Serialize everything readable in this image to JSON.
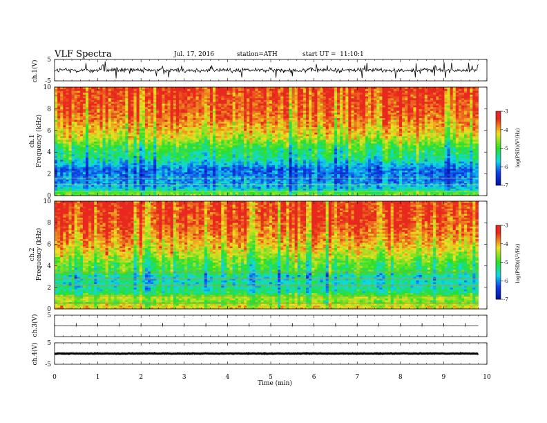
{
  "header": {
    "title": "VLF Spectra",
    "date": "Jul. 17, 2016",
    "station": "station=ATH",
    "start": "start UT =  11:10:1"
  },
  "xaxis": {
    "label": "Time (min)"
  },
  "panels": {
    "ch1_wave": {
      "ylabel": "ch.1(V)"
    },
    "ch1_spec": {
      "ylabel_top": "ch.1",
      "ylabel_bottom": "Frequency (kHz)"
    },
    "ch2_spec": {
      "ylabel_top": "ch.2",
      "ylabel_bottom": "Frequency (kHz)"
    },
    "ch3_wave": {
      "ylabel": "ch.3(V)"
    },
    "ch4_wave": {
      "ylabel": "ch.4(V)"
    }
  },
  "colorbar": {
    "label": "log(PSD)(V²/Hz)"
  },
  "colors": {
    "red": "#e8281e",
    "yellow": "#f0e020",
    "green": "#28e028",
    "cyan": "#10d8e8",
    "blue": "#1040e8",
    "navy": "#0010a0"
  },
  "chart_data": [
    {
      "type": "line",
      "name": "ch.1 waveform",
      "ylabel": "ch.1(V)",
      "xlim": [
        0,
        10
      ],
      "ylim": [
        -5,
        5
      ],
      "yticks": [
        {
          "value": 5,
          "label": "5"
        },
        {
          "value": -5,
          "label": "-5"
        }
      ],
      "x_data_end": 9.8,
      "baseline": 0,
      "amplitude_typical": 1.5,
      "amplitude_spikes": 4.5
    },
    {
      "type": "heatmap",
      "name": "ch.1 spectrogram",
      "ylabel": "Frequency (kHz)",
      "xlim": [
        0,
        10
      ],
      "ylim": [
        0,
        10
      ],
      "yticks": [
        {
          "value": 0,
          "label": "0"
        },
        {
          "value": 2,
          "label": "2"
        },
        {
          "value": 4,
          "label": "4"
        },
        {
          "value": 6,
          "label": "6"
        },
        {
          "value": 8,
          "label": "8"
        },
        {
          "value": 10,
          "label": "10"
        }
      ],
      "x_data_end": 9.8,
      "zlim": [
        -7,
        -3
      ],
      "colorbar_ticks": [
        {
          "value": -3,
          "label": "-3"
        },
        {
          "value": -4,
          "label": "-4"
        },
        {
          "value": -5,
          "label": "-5"
        },
        {
          "value": -6,
          "label": "-6"
        },
        {
          "value": -7,
          "label": "-7"
        }
      ],
      "mean_log_psd_by_freq": [
        [
          0.3,
          -4.8
        ],
        [
          0.6,
          -5.6
        ],
        [
          1.0,
          -5.9
        ],
        [
          1.5,
          -6.0
        ],
        [
          2.0,
          -6.1
        ],
        [
          2.5,
          -6.1
        ],
        [
          3.0,
          -5.7
        ],
        [
          3.5,
          -5.3
        ],
        [
          4.0,
          -5.2
        ],
        [
          4.5,
          -5.0
        ],
        [
          5.0,
          -4.6
        ],
        [
          5.5,
          -4.3
        ],
        [
          6.0,
          -4.1
        ],
        [
          7.0,
          -3.8
        ],
        [
          8.0,
          -3.6
        ],
        [
          9.0,
          -3.5
        ],
        [
          10.0,
          -3.4
        ]
      ]
    },
    {
      "type": "heatmap",
      "name": "ch.2 spectrogram",
      "ylabel": "Frequency (kHz)",
      "xlim": [
        0,
        10
      ],
      "ylim": [
        0,
        10
      ],
      "yticks": [
        {
          "value": 0,
          "label": "0"
        },
        {
          "value": 2,
          "label": "2"
        },
        {
          "value": 4,
          "label": "4"
        },
        {
          "value": 6,
          "label": "6"
        },
        {
          "value": 8,
          "label": "8"
        },
        {
          "value": 10,
          "label": "10"
        }
      ],
      "x_data_end": 9.8,
      "zlim": [
        -7,
        -3
      ],
      "colorbar_ticks": [
        {
          "value": -3,
          "label": "-3"
        },
        {
          "value": -4,
          "label": "-4"
        },
        {
          "value": -5,
          "label": "-5"
        },
        {
          "value": -6,
          "label": "-6"
        },
        {
          "value": -7,
          "label": "-7"
        }
      ],
      "mean_log_psd_by_freq": [
        [
          0.3,
          -4.2
        ],
        [
          0.6,
          -4.8
        ],
        [
          1.0,
          -4.4
        ],
        [
          1.5,
          -5.2
        ],
        [
          2.0,
          -5.4
        ],
        [
          2.5,
          -5.5
        ],
        [
          3.0,
          -5.5
        ],
        [
          3.5,
          -5.0
        ],
        [
          4.0,
          -4.9
        ],
        [
          4.5,
          -4.7
        ],
        [
          5.0,
          -4.4
        ],
        [
          5.5,
          -4.2
        ],
        [
          6.0,
          -4.0
        ],
        [
          7.0,
          -3.7
        ],
        [
          8.0,
          -3.5
        ],
        [
          9.0,
          -3.4
        ],
        [
          10.0,
          -3.4
        ]
      ]
    },
    {
      "type": "line",
      "name": "ch.3 waveform",
      "ylabel": "ch.3(V)",
      "xlim": [
        0,
        10
      ],
      "ylim": [
        -5,
        5
      ],
      "yticks": [
        {
          "value": 5,
          "label": "5"
        }
      ],
      "x_data_end": 9.8,
      "baseline": 0,
      "amplitude_typical": 0.05
    },
    {
      "type": "line",
      "name": "ch.4 waveform",
      "ylabel": "ch.4(V)",
      "xlim": [
        0,
        10
      ],
      "ylim": [
        -5,
        5
      ],
      "yticks": [
        {
          "value": 5,
          "label": "5"
        },
        {
          "value": -5,
          "label": "-5"
        }
      ],
      "x_data_end": 9.8,
      "baseline": 0,
      "amplitude_typical": 0.2
    }
  ],
  "xticks": [
    {
      "value": 0,
      "label": "0"
    },
    {
      "value": 1,
      "label": "1"
    },
    {
      "value": 2,
      "label": "2"
    },
    {
      "value": 3,
      "label": "3"
    },
    {
      "value": 4,
      "label": "4"
    },
    {
      "value": 5,
      "label": "5"
    },
    {
      "value": 6,
      "label": "6"
    },
    {
      "value": 7,
      "label": "7"
    },
    {
      "value": 8,
      "label": "8"
    },
    {
      "value": 9,
      "label": "9"
    },
    {
      "value": 10,
      "label": "10"
    }
  ]
}
